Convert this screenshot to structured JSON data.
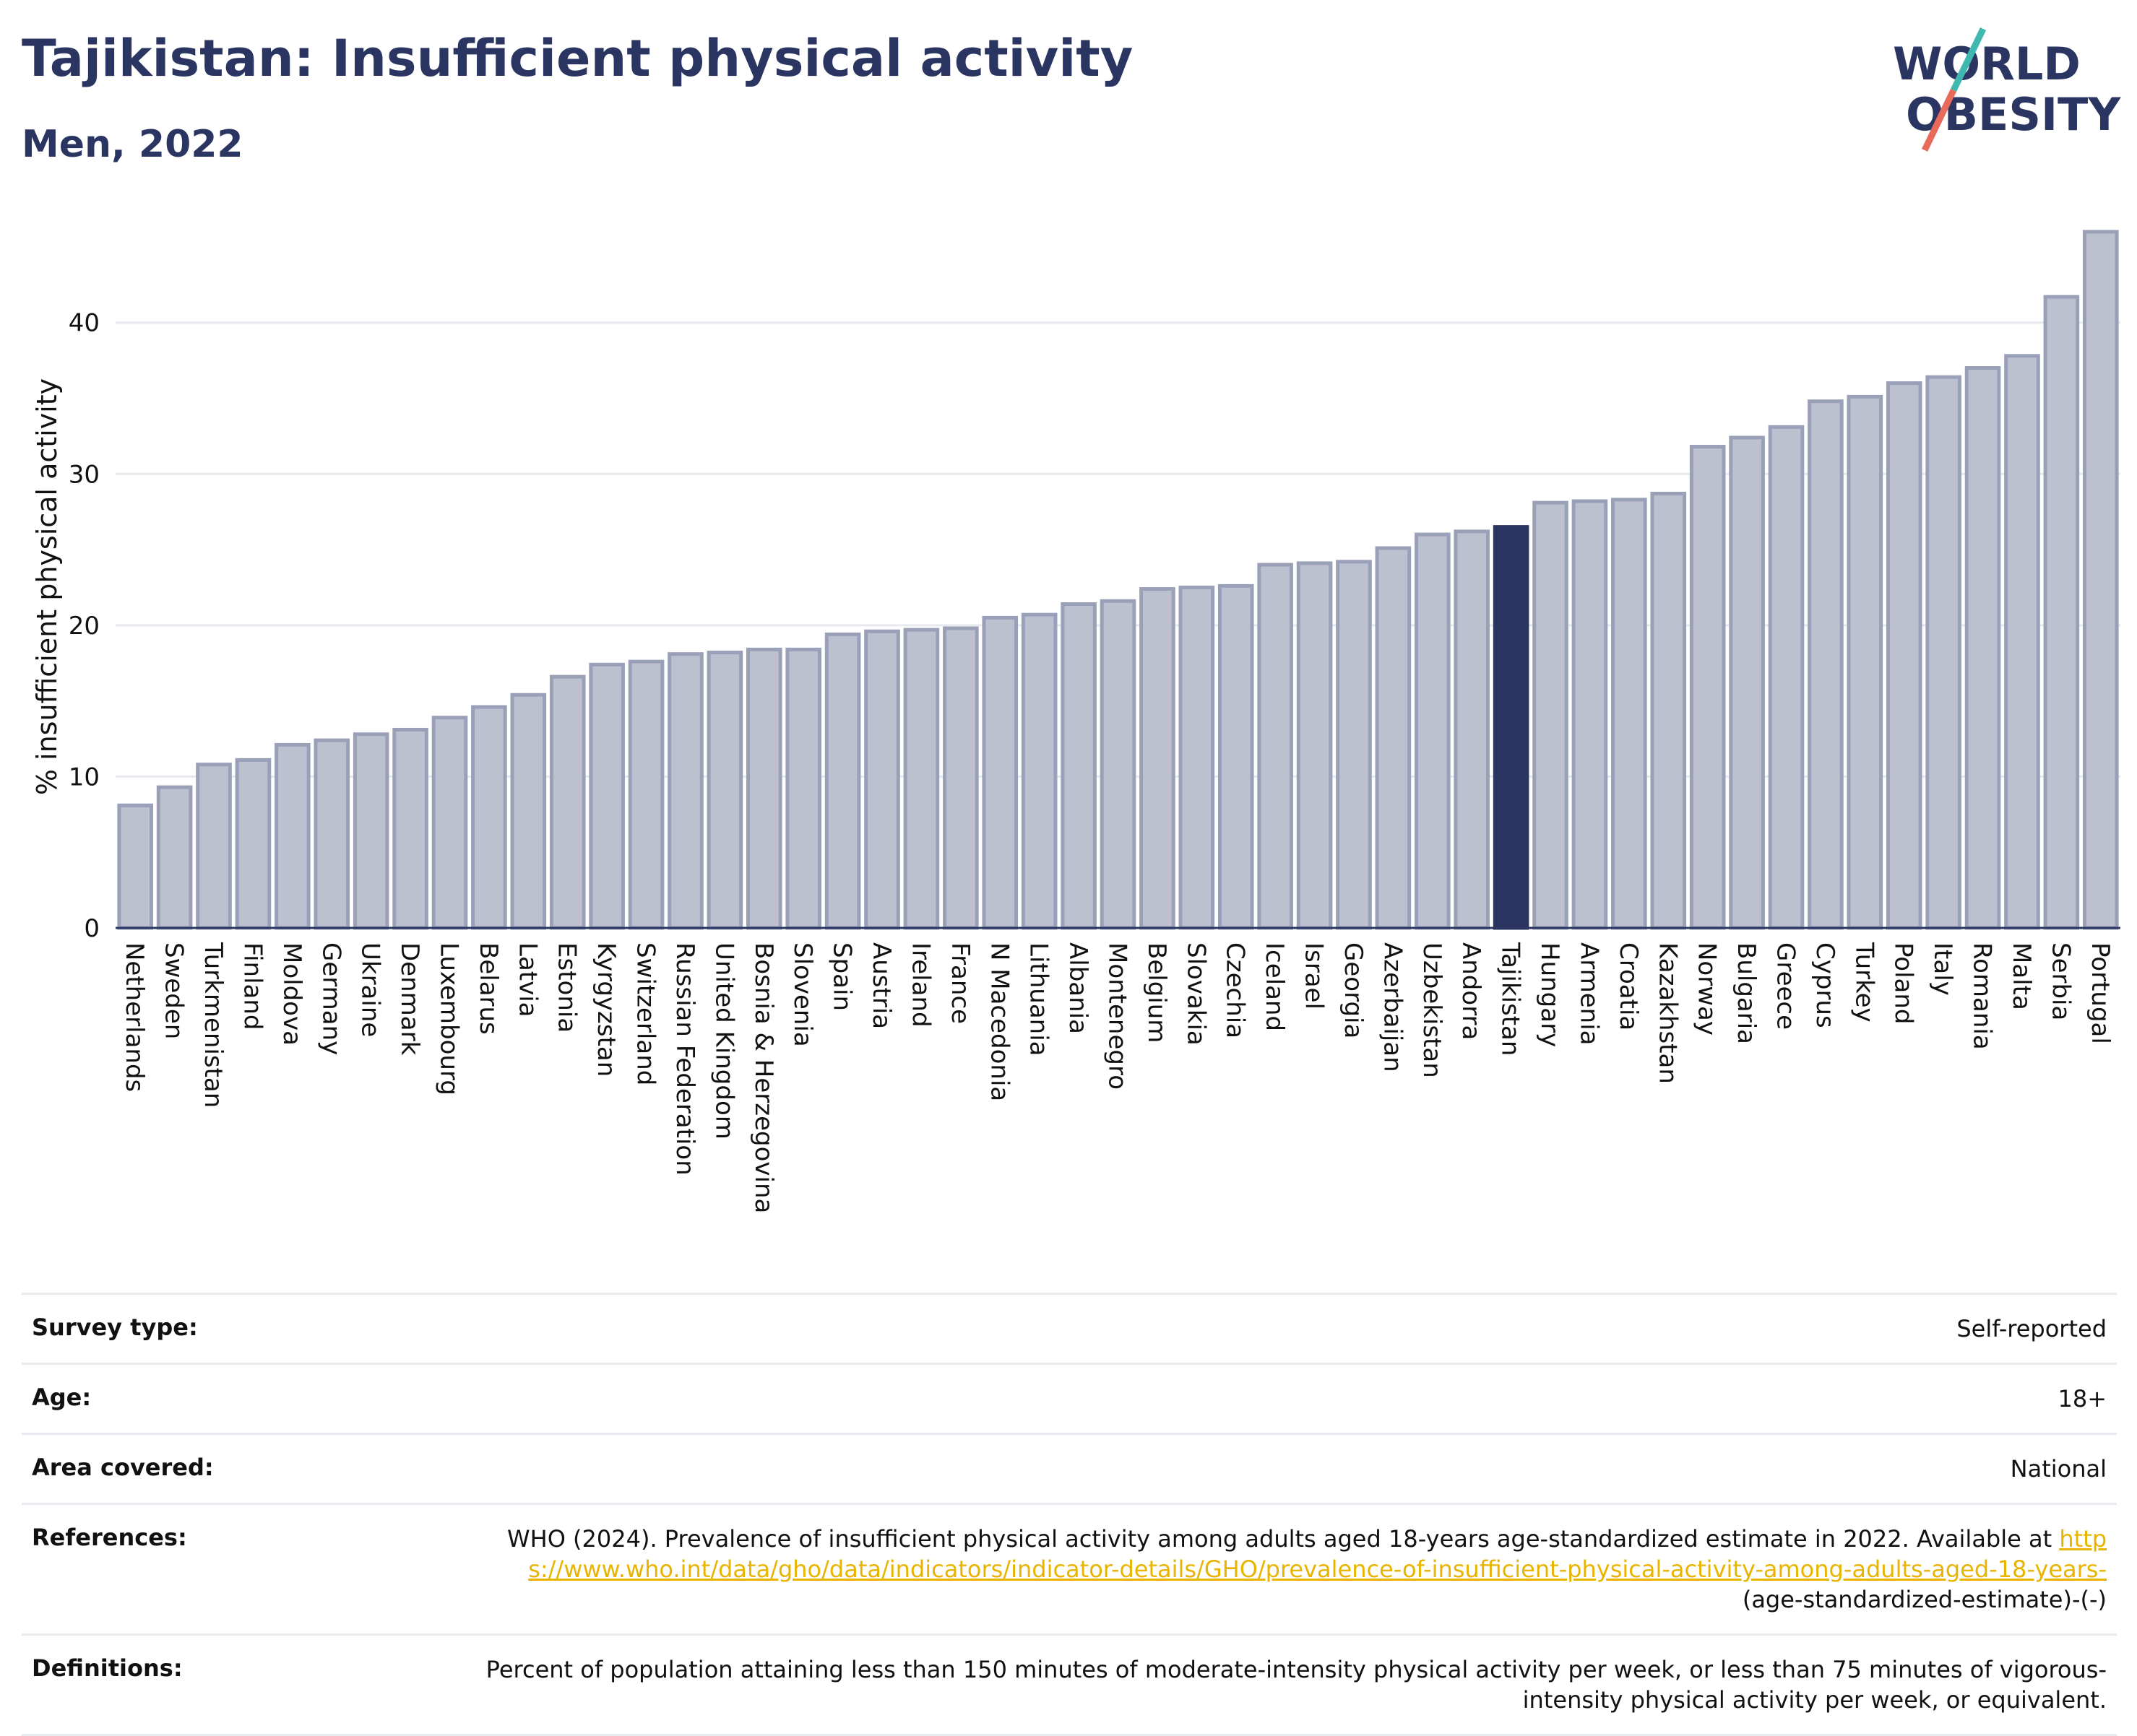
{
  "header": {
    "title": "Tajikistan: Insufficient physical activity",
    "subtitle": "Men, 2022"
  },
  "logo": {
    "line1": "WORLD",
    "line2": "OBESITY",
    "colors": {
      "text": "#2b3562",
      "teal": "#3fb8b0",
      "coral": "#e86a5a"
    }
  },
  "colors": {
    "bar": "#bcc0cf",
    "bar_stroke": "#9aa0b8",
    "highlight": "#2b3562",
    "grid": "#e6e9ee"
  },
  "chart_data": {
    "type": "bar",
    "title": "Tajikistan: Insufficient physical activity",
    "subtitle": "Men, 2022",
    "xlabel": "",
    "ylabel": "% insufficient physical activity",
    "ylim": [
      0,
      47
    ],
    "yticks": [
      0,
      10,
      20,
      30,
      40
    ],
    "grid": true,
    "highlight": "Tajikistan",
    "categories": [
      "Netherlands",
      "Sweden",
      "Turkmenistan",
      "Finland",
      "Moldova",
      "Germany",
      "Ukraine",
      "Denmark",
      "Luxembourg",
      "Belarus",
      "Latvia",
      "Estonia",
      "Kyrgyzstan",
      "Switzerland",
      "Russian Federation",
      "United Kingdom",
      "Bosnia & Herzegovina",
      "Slovenia",
      "Spain",
      "Austria",
      "Ireland",
      "France",
      "N Macedonia",
      "Lithuania",
      "Albania",
      "Montenegro",
      "Belgium",
      "Slovakia",
      "Czechia",
      "Iceland",
      "Israel",
      "Georgia",
      "Azerbaijan",
      "Uzbekistan",
      "Andorra",
      "Tajikistan",
      "Hungary",
      "Armenia",
      "Croatia",
      "Kazakhstan",
      "Norway",
      "Bulgaria",
      "Greece",
      "Cyprus",
      "Turkey",
      "Poland",
      "Italy",
      "Romania",
      "Malta",
      "Serbia",
      "Portugal"
    ],
    "values": [
      8.1,
      9.3,
      10.8,
      11.1,
      12.1,
      12.4,
      12.8,
      13.1,
      13.9,
      14.6,
      15.4,
      16.6,
      17.4,
      17.6,
      18.1,
      18.2,
      18.4,
      18.4,
      19.4,
      19.6,
      19.7,
      19.8,
      20.5,
      20.7,
      21.4,
      21.6,
      22.4,
      22.5,
      22.6,
      24.0,
      24.1,
      24.2,
      25.1,
      26.0,
      26.2,
      26.5,
      28.1,
      28.2,
      28.3,
      28.7,
      31.8,
      32.4,
      33.1,
      34.8,
      35.1,
      36.0,
      36.4,
      37.0,
      37.8,
      41.7,
      46.0
    ]
  },
  "meta": {
    "survey_label": "Survey type:",
    "survey_value": "Self-reported",
    "age_label": "Age:",
    "age_value": "18+",
    "area_label": "Area covered:",
    "area_value": "National",
    "references_label": "References:",
    "references_text": "WHO (2024). Prevalence of insufficient physical activity among adults aged 18-years age-standardized estimate in 2022. Available at",
    "references_link": "https://www.who.int/data/gho/data/indicators/indicator-details/GHO/prevalence-of-insufficient-physical-activity-among-adults-aged-18-years-",
    "references_tail": "(age-standardized-estimate)-(-)",
    "definitions_label": "Definitions:",
    "definitions_value": "Percent of population attaining less than 150 minutes of moderate-intensity physical activity per week, or less than 75 minutes of vigorous-intensity physical activity per week, or equivalent."
  }
}
